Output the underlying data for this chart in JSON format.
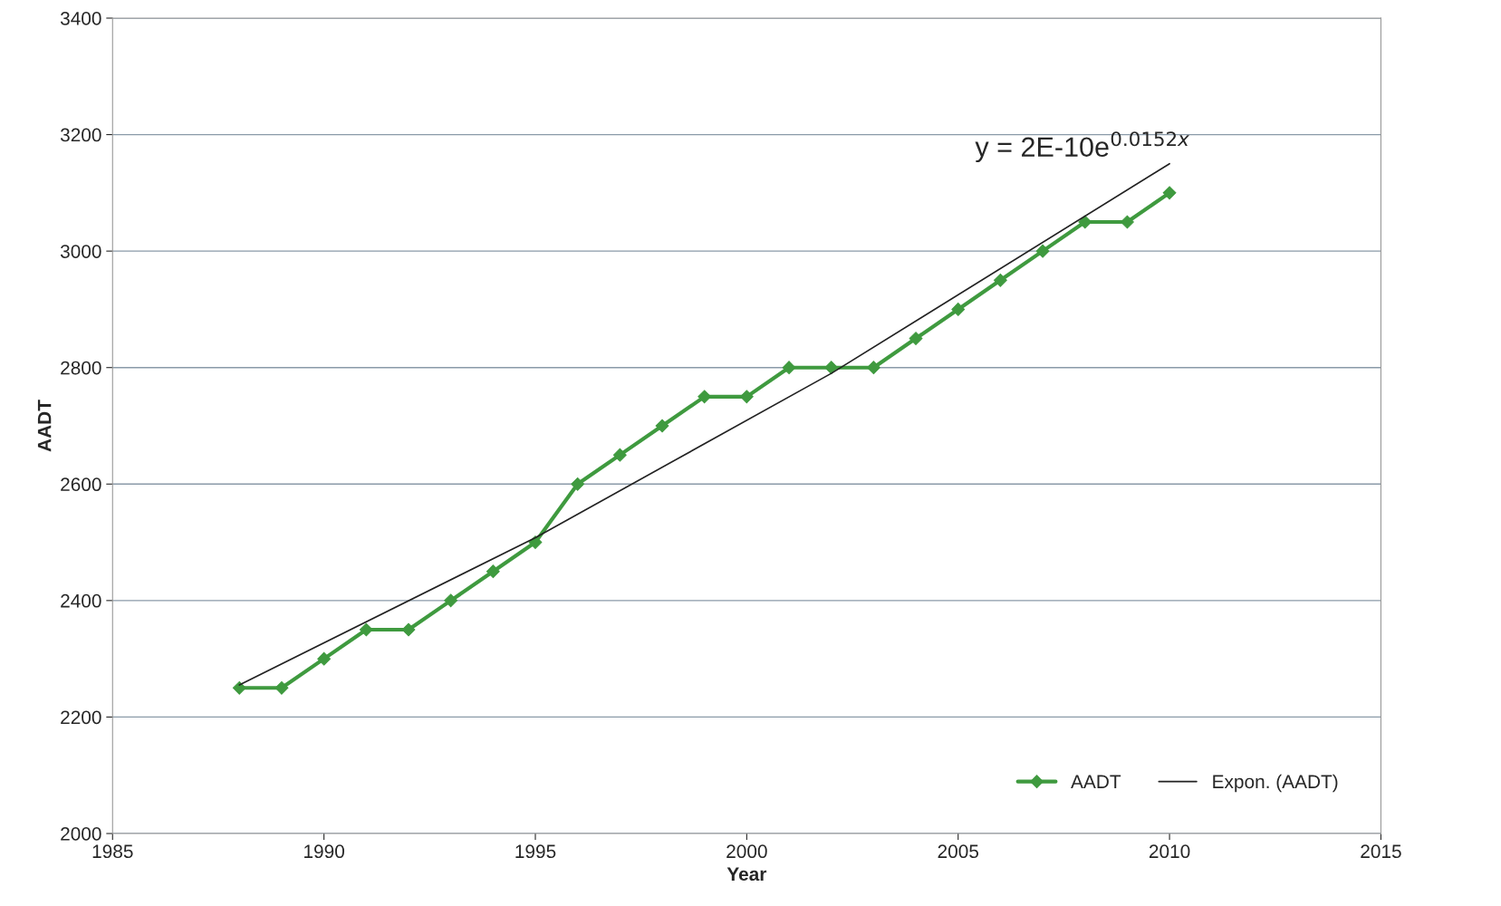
{
  "chart_data": {
    "type": "line",
    "xlabel": "Year",
    "ylabel": "AADT",
    "x": [
      1988,
      1989,
      1990,
      1991,
      1992,
      1993,
      1994,
      1995,
      1996,
      1997,
      1998,
      1999,
      2000,
      2001,
      2002,
      2003,
      2004,
      2005,
      2006,
      2007,
      2008,
      2009,
      2010
    ],
    "series": [
      {
        "name": "AADT",
        "color": "#3f9a3f",
        "marker": "diamond",
        "values": [
          2250,
          2250,
          2300,
          2350,
          2350,
          2400,
          2450,
          2500,
          2600,
          2650,
          2700,
          2750,
          2750,
          2800,
          2800,
          2800,
          2850,
          2900,
          2950,
          3000,
          3050,
          3050,
          3100
        ]
      },
      {
        "name": "Expon. (AADT)",
        "color": "#222222",
        "marker": "none",
        "x": [
          1988,
          1995,
          2002,
          2010
        ],
        "values": [
          2255,
          2508,
          2790,
          3150
        ]
      }
    ],
    "annotations": [
      "y = 2E-10e$^{0.0152x}$"
    ],
    "xlim": [
      1985,
      2015
    ],
    "xticks": [
      1985,
      1990,
      1995,
      2000,
      2005,
      2010,
      2015
    ],
    "ylim": [
      2000,
      3400
    ],
    "yticks": [
      2000,
      2200,
      2400,
      2600,
      2800,
      3000,
      3200,
      3400
    ],
    "grid": "y",
    "legend": "bottom right"
  }
}
